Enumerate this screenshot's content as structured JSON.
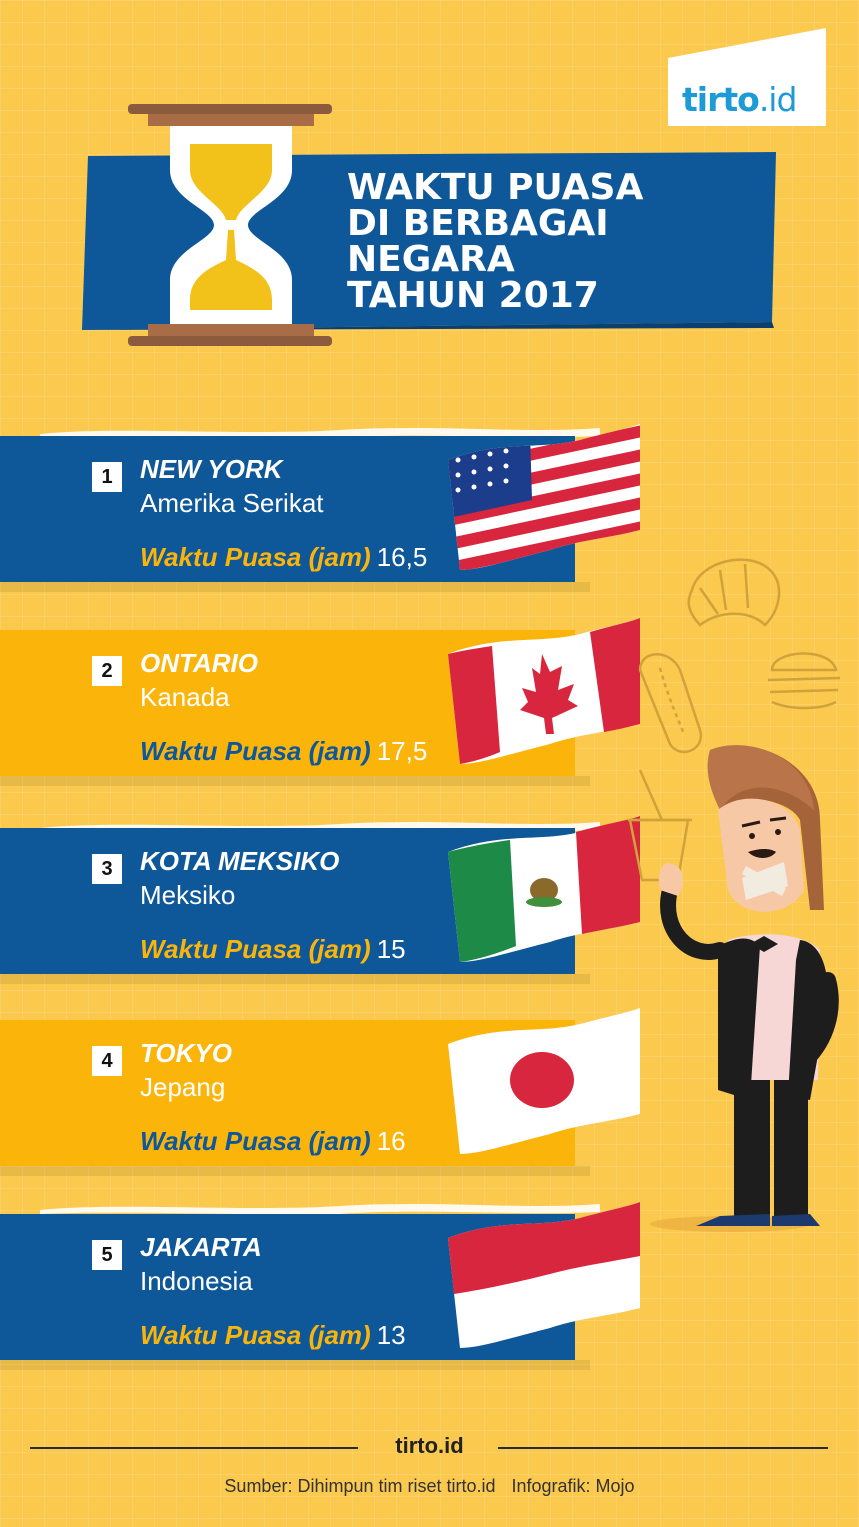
{
  "brand": {
    "logo_main": "tirto",
    "logo_suffix": ".id"
  },
  "title": {
    "lines": [
      "WAKTU PUASA",
      "DI BERBAGAI",
      "NEGARA",
      "TAHUN 2017"
    ]
  },
  "waktu_label": "Waktu Puasa (jam)",
  "entries": [
    {
      "rank": "1",
      "city": "NEW YORK",
      "country": "Amerika Serikat",
      "hours": "16,5",
      "flag": "usa-flag-icon"
    },
    {
      "rank": "2",
      "city": "ONTARIO",
      "country": "Kanada",
      "hours": "17,5",
      "flag": "canada-flag-icon"
    },
    {
      "rank": "3",
      "city": "KOTA MEKSIKO",
      "country": "Meksiko",
      "hours": "15",
      "flag": "mexico-flag-icon"
    },
    {
      "rank": "4",
      "city": "TOKYO",
      "country": "Jepang",
      "hours": "16",
      "flag": "japan-flag-icon"
    },
    {
      "rank": "5",
      "city": "JAKARTA",
      "country": "Indonesia",
      "hours": "13",
      "flag": "indonesia-flag-icon"
    }
  ],
  "footer": {
    "brand": "tirto.id",
    "source": "Sumber: Dihimpun tim riset tirto.id",
    "credit": "Infografik: Mojo"
  },
  "colors": {
    "background": "#fbc94e",
    "blue": "#0e5799",
    "gold": "#fbb40a",
    "brand_blue": "#1e9ad6"
  }
}
